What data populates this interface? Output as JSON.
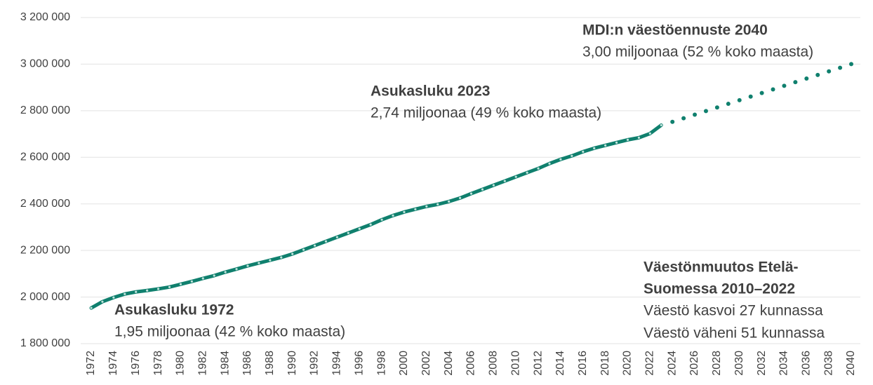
{
  "chart_data": {
    "type": "line",
    "x": [
      1972,
      1973,
      1974,
      1975,
      1976,
      1977,
      1978,
      1979,
      1980,
      1981,
      1982,
      1983,
      1984,
      1985,
      1986,
      1987,
      1988,
      1989,
      1990,
      1991,
      1992,
      1993,
      1994,
      1995,
      1996,
      1997,
      1998,
      1999,
      2000,
      2001,
      2002,
      2003,
      2004,
      2005,
      2006,
      2007,
      2008,
      2009,
      2010,
      2011,
      2012,
      2013,
      2014,
      2015,
      2016,
      2017,
      2018,
      2019,
      2020,
      2021,
      2022,
      2023,
      2024,
      2025,
      2026,
      2027,
      2028,
      2029,
      2030,
      2031,
      2032,
      2033,
      2034,
      2035,
      2036,
      2037,
      2038,
      2039,
      2040
    ],
    "series": [
      {
        "color": "#10806e",
        "style": "solid",
        "values": [
          1953000,
          1980000,
          1998000,
          2013000,
          2022000,
          2028000,
          2035000,
          2043000,
          2055000,
          2067000,
          2080000,
          2092000,
          2107000,
          2120000,
          2134000,
          2146000,
          2158000,
          2170000,
          2185000,
          2203000,
          2221000,
          2239000,
          2257000,
          2275000,
          2293000,
          2311000,
          2332000,
          2350000,
          2365000,
          2377000,
          2389000,
          2398000,
          2410000,
          2425000,
          2444000,
          2462000,
          2480000,
          2498000,
          2516000,
          2534000,
          2552000,
          2573000,
          2591000,
          2606000,
          2624000,
          2639000,
          2651000,
          2663000,
          2675000,
          2684000,
          2702000,
          2738000,
          null,
          null,
          null,
          null,
          null,
          null,
          null,
          null,
          null,
          null,
          null,
          null,
          null,
          null,
          null,
          null,
          null
        ]
      },
      {
        "color": "#10806e",
        "style": "dotted",
        "values": [
          null,
          null,
          null,
          null,
          null,
          null,
          null,
          null,
          null,
          null,
          null,
          null,
          null,
          null,
          null,
          null,
          null,
          null,
          null,
          null,
          null,
          null,
          null,
          null,
          null,
          null,
          null,
          null,
          null,
          null,
          null,
          null,
          null,
          null,
          null,
          null,
          null,
          null,
          null,
          null,
          null,
          null,
          null,
          null,
          null,
          null,
          null,
          null,
          null,
          null,
          null,
          null,
          2752000,
          2767500,
          2783000,
          2798500,
          2814000,
          2829500,
          2845000,
          2860500,
          2876000,
          2891500,
          2907000,
          2922500,
          2938000,
          2953500,
          2969000,
          2984500,
          3000000
        ]
      }
    ],
    "xlim": [
      1972,
      2040
    ],
    "xticks": [
      1972,
      1974,
      1976,
      1978,
      1980,
      1982,
      1984,
      1986,
      1988,
      1990,
      1992,
      1994,
      1996,
      1998,
      2000,
      2002,
      2004,
      2006,
      2008,
      2010,
      2012,
      2014,
      2016,
      2018,
      2020,
      2022,
      2024,
      2026,
      2028,
      2030,
      2032,
      2034,
      2036,
      2038,
      2040
    ],
    "ylim": [
      1800000,
      3200000
    ],
    "yticks": [
      {
        "value": 1800000,
        "label": "1 800 000"
      },
      {
        "value": 2000000,
        "label": "2 000 000"
      },
      {
        "value": 2200000,
        "label": "2 200 000"
      },
      {
        "value": 2400000,
        "label": "2 400 000"
      },
      {
        "value": 2600000,
        "label": "2 600 000"
      },
      {
        "value": 2800000,
        "label": "2 800 000"
      },
      {
        "value": 3000000,
        "label": "3 000 000"
      },
      {
        "value": 3200000,
        "label": "3 200 000"
      }
    ],
    "grid": true,
    "annotations": [
      {
        "title": [
          "Asukasluku 1972"
        ],
        "text": [
          "1,95 miljoonaa (42 % koko maasta)"
        ]
      },
      {
        "title": [
          "Asukasluku 2023"
        ],
        "text": [
          "2,74 miljoonaa (49 % koko maasta)"
        ]
      },
      {
        "title": [
          "MDI:n väestöennuste 2040"
        ],
        "text": [
          "3,00 miljoonaa (52 % koko maasta)"
        ]
      },
      {
        "title": [
          "Väestönmuutos Etelä-",
          "Suomessa 2010–2022"
        ],
        "text": [
          "Väestö kasvoi 27 kunnassa",
          "Väestö väheni 51 kunnassa"
        ]
      }
    ]
  }
}
